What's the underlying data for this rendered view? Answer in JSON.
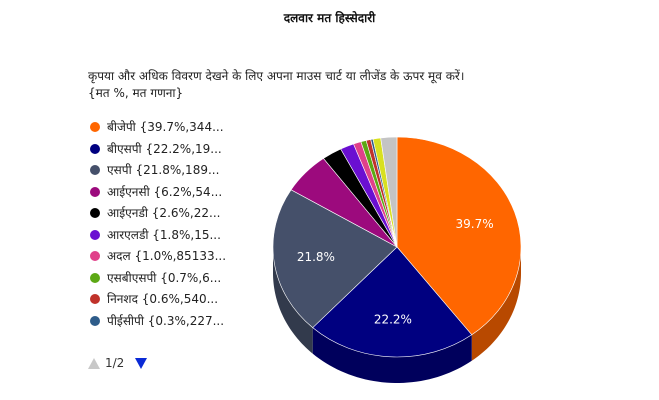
{
  "title": "दलवार मत हिस्सेदारी",
  "hint_line1": "कृपया और अधिक विवरण देखने के लिए अपना माउस चार्ट या लीजेंड के ऊपर मूव करें।",
  "hint_line2": "{मत %, मत गणना}",
  "pager": {
    "text": "1/2"
  },
  "legend": [
    {
      "label": "बीजेपी {39.7%,344...",
      "color": "#ff6600"
    },
    {
      "label": "बीएसपी {22.2%,19...",
      "color": "#000080"
    },
    {
      "label": "एसपी {21.8%,189...",
      "color": "#45506a"
    },
    {
      "label": "आईएनसी {6.2%,54...",
      "color": "#9c0a7d"
    },
    {
      "label": "आईएनडी {2.6%,22...",
      "color": "#000000"
    },
    {
      "label": "आरएलडी {1.8%,15...",
      "color": "#6a0fd1"
    },
    {
      "label": "अदल {1.0%,85133...",
      "color": "#e0408a"
    },
    {
      "label": "एसबीएसपी {0.7%,6...",
      "color": "#5ca814"
    },
    {
      "label": "निनशद {0.6%,540...",
      "color": "#c0322a"
    },
    {
      "label": "पीईसीपी {0.3%,227...",
      "color": "#2e5c8a"
    }
  ],
  "chart_data": {
    "type": "pie",
    "slices": [
      {
        "name": "बीजेपी",
        "value": 39.7,
        "color": "#ff6600",
        "label": "39.7%"
      },
      {
        "name": "बीएसपी",
        "value": 22.2,
        "color": "#000080",
        "label": "22.2%"
      },
      {
        "name": "एसपी",
        "value": 21.8,
        "color": "#45506a",
        "label": "21.8%"
      },
      {
        "name": "आईएनसी",
        "value": 6.2,
        "color": "#9c0a7d",
        "label": ""
      },
      {
        "name": "आईएनडी",
        "value": 2.6,
        "color": "#000000",
        "label": ""
      },
      {
        "name": "आरएलडी",
        "value": 1.8,
        "color": "#6a0fd1",
        "label": ""
      },
      {
        "name": "अदल",
        "value": 1.0,
        "color": "#e0408a",
        "label": ""
      },
      {
        "name": "एसबीएसपी",
        "value": 0.7,
        "color": "#5ca814",
        "label": ""
      },
      {
        "name": "निनशद",
        "value": 0.6,
        "color": "#c0322a",
        "label": ""
      },
      {
        "name": "पीईसीपी",
        "value": 0.3,
        "color": "#2e5c8a",
        "label": ""
      },
      {
        "name": "",
        "value": 1.0,
        "color": "#d8e020",
        "label": ""
      },
      {
        "name": "",
        "value": 2.1,
        "color": "#c4c4c4",
        "label": ""
      }
    ]
  }
}
